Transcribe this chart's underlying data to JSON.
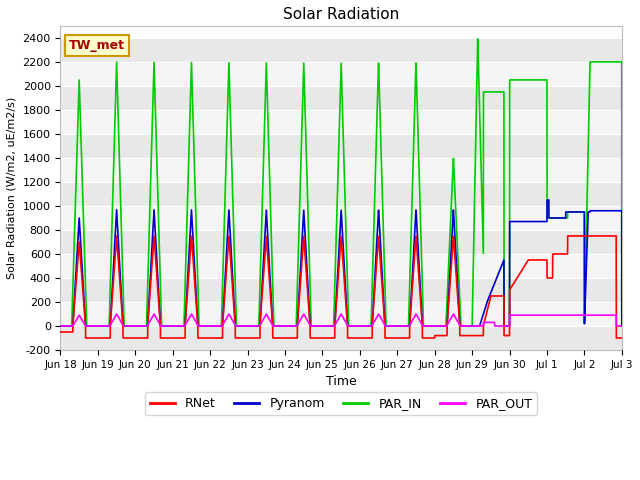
{
  "title": "Solar Radiation",
  "ylabel": "Solar Radiation (W/m2, uE/m2/s)",
  "xlabel": "Time",
  "station_label": "TW_met",
  "ylim": [
    -200,
    2500
  ],
  "yticks": [
    -200,
    0,
    200,
    400,
    600,
    800,
    1000,
    1200,
    1400,
    1600,
    1800,
    2000,
    2200,
    2400
  ],
  "fig_bg": "#ffffff",
  "plot_bg": "#ffffff",
  "legend_entries": [
    "RNet",
    "Pyranom",
    "PAR_IN",
    "PAR_OUT"
  ],
  "line_colors": {
    "RNet": "#ff0000",
    "Pyranom": "#0000cc",
    "PAR_IN": "#00cc00",
    "PAR_OUT": "#ff00ff"
  },
  "tick_labels": [
    "Jun 18",
    "Jun 19",
    "Jun 20",
    "Jun 21",
    "Jun 22",
    "Jun 23",
    "Jun 24",
    "Jun 25",
    "Jun 26",
    "Jun 27",
    "Jun 28",
    "Jun 29",
    "Jun 30",
    "Jul 1",
    "Jul 2",
    "Jul 3"
  ],
  "n_days": 15,
  "stripe_color_light": "#f0f0f0",
  "stripe_color_dark": "#e0e0e0",
  "grid_color": "#cccccc"
}
